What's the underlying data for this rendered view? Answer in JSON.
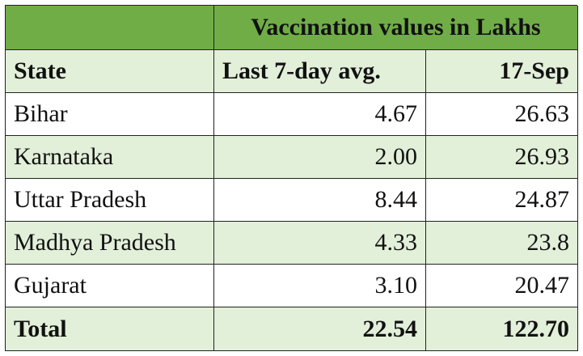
{
  "table": {
    "title": "Vaccination values in Lakhs",
    "headers": [
      "State",
      "Last 7-day avg.",
      "17-Sep"
    ],
    "rows": [
      [
        "Bihar",
        "4.67",
        "26.63"
      ],
      [
        "Karnataka",
        "2.00",
        "26.93"
      ],
      [
        "Uttar Pradesh",
        "8.44",
        "24.87"
      ],
      [
        "Madhya Pradesh",
        "4.33",
        "23.8"
      ],
      [
        "Gujarat",
        "3.10",
        "20.47"
      ]
    ],
    "total": [
      "Total",
      "22.54",
      "122.70"
    ]
  },
  "colors": {
    "header_dark": "#70ad47",
    "header_light": "#e2efd9",
    "border": "#222222"
  }
}
